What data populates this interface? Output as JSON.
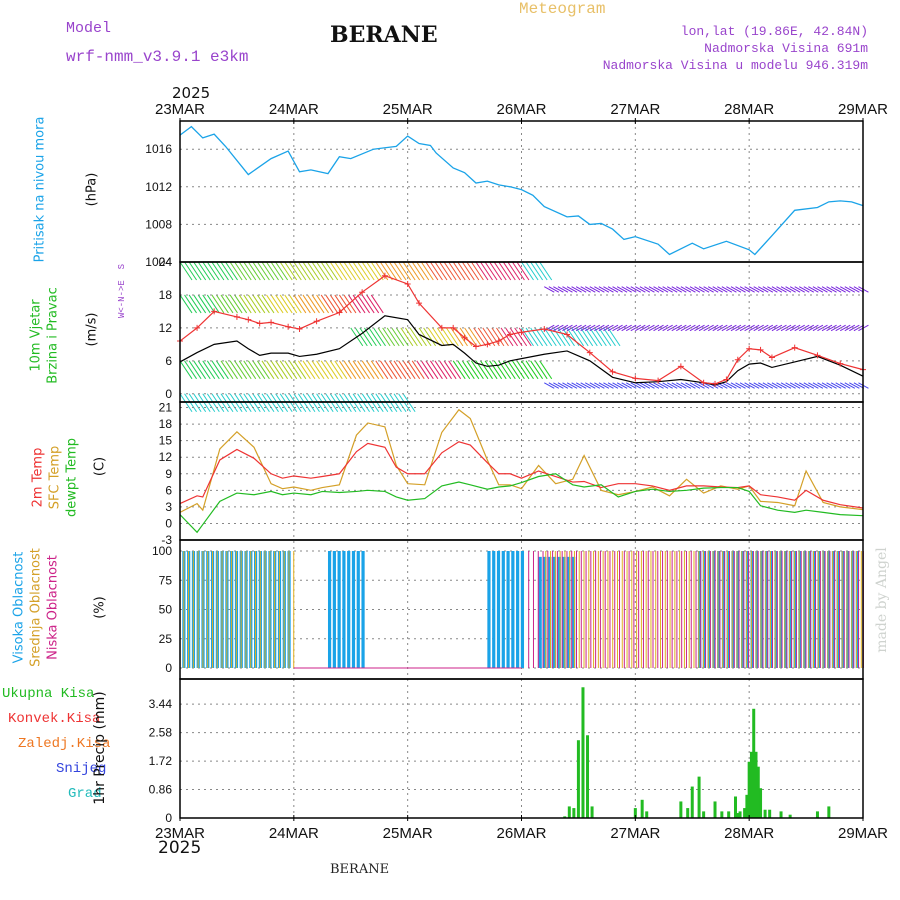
{
  "header": {
    "model_label": "Model",
    "model_name": "wrf-nmm_v3.9.1 e3km",
    "station": "BERANE",
    "subtitle": "Meteogram",
    "lonlat": "lon,lat (19.86E, 42.84N)",
    "elevation": "Nadmorska Visina 691m",
    "model_elevation": "Nadmorska Visina u modelu 946.319m",
    "year": "2025"
  },
  "footer": {
    "station": "BERANE",
    "year": "2025",
    "credit": "made by Angel"
  },
  "x_axis": {
    "labels": [
      "23MAR",
      "24MAR",
      "25MAR",
      "26MAR",
      "27MAR",
      "28MAR",
      "29MAR"
    ]
  },
  "colors": {
    "pressure": "#1aa3e8",
    "wind_speed": "#000000",
    "gust": "#ee3333",
    "temp2m": "#ee3333",
    "sfc_temp": "#d4a028",
    "dewpt": "#22bb22",
    "cloud_high": "#1aa3e8",
    "cloud_mid": "#e0b020",
    "cloud_low": "#cc2288",
    "precip_total": "#22bb22",
    "precip_conv": "#ee3333",
    "precip_frozen": "#ee7722",
    "snow": "#3344dd",
    "hail": "#22bbbb",
    "direction_legend": "#9944cc"
  },
  "chart_data": [
    {
      "type": "line",
      "title": "Pritisak na nivou mora",
      "ylabel": "(hPa)",
      "ylim": [
        1004,
        1019
      ],
      "yticks": [
        "1016",
        "1012",
        "1008",
        "1004"
      ],
      "x": [
        0,
        0.1,
        0.2,
        0.3,
        0.4,
        0.6,
        0.8,
        0.95,
        1.05,
        1.15,
        1.3,
        1.4,
        1.5,
        1.7,
        1.9,
        2.0,
        2.1,
        2.2,
        2.25,
        2.4,
        2.5,
        2.6,
        2.7,
        2.8,
        2.9,
        3.0,
        3.1,
        3.2,
        3.4,
        3.5,
        3.6,
        3.7,
        3.8,
        3.9,
        4.0,
        4.2,
        4.3,
        4.5,
        4.6,
        4.8,
        5.0,
        5.05,
        5.2,
        5.4,
        5.6,
        5.7,
        5.8,
        5.9,
        6.0
      ],
      "series": [
        {
          "name": "Pritisak",
          "values": [
            1017.5,
            1018.4,
            1017.2,
            1017.6,
            1016.3,
            1013.3,
            1015.0,
            1015.8,
            1013.6,
            1013.8,
            1013.4,
            1015.2,
            1015.0,
            1016.0,
            1016.3,
            1017.4,
            1016.6,
            1016.4,
            1015.6,
            1014.0,
            1013.5,
            1012.4,
            1012.6,
            1012.2,
            1012.0,
            1011.7,
            1011.1,
            1009.9,
            1008.8,
            1008.9,
            1008.0,
            1008.1,
            1007.5,
            1006.4,
            1006.7,
            1005.9,
            1004.8,
            1006.0,
            1005.4,
            1006.2,
            1005.3,
            1004.8,
            1006.8,
            1009.5,
            1009.8,
            1010.4,
            1010.5,
            1010.4,
            1010.0
          ]
        }
      ]
    },
    {
      "type": "line",
      "title": "10m Vjetar Brzina i Pravac",
      "ylabel": "(m/s)",
      "ylim": [
        -1.5,
        24
      ],
      "yticks": [
        "24",
        "18",
        "12",
        "6",
        "0"
      ],
      "direction_legend": [
        "N",
        "E",
        "W",
        "S"
      ],
      "x": [
        0,
        0.15,
        0.3,
        0.5,
        0.6,
        0.7,
        0.8,
        0.95,
        1.05,
        1.2,
        1.4,
        1.6,
        1.8,
        2.0,
        2.1,
        2.3,
        2.4,
        2.5,
        2.6,
        2.7,
        2.8,
        2.9,
        3.0,
        3.2,
        3.4,
        3.6,
        3.8,
        4.0,
        4.2,
        4.4,
        4.6,
        4.7,
        4.8,
        4.9,
        5.0,
        5.1,
        5.2,
        5.4,
        5.6,
        5.8,
        6.0
      ],
      "series": [
        {
          "name": "Brzina vjetra",
          "values": [
            5.8,
            7.5,
            9.0,
            9.6,
            8.2,
            7.0,
            7.4,
            7.4,
            6.8,
            7.2,
            8.2,
            11.0,
            14.2,
            13.5,
            10.8,
            8.8,
            9.0,
            7.4,
            5.6,
            5.0,
            5.2,
            6.0,
            6.4,
            7.2,
            7.8,
            6.0,
            3.0,
            2.0,
            2.2,
            2.6,
            2.0,
            1.6,
            2.2,
            4.2,
            5.4,
            5.6,
            4.8,
            5.8,
            6.8,
            5.2,
            3.2
          ]
        },
        {
          "name": "Udari vjetra",
          "values": [
            9.6,
            12.0,
            15.0,
            14.0,
            13.5,
            12.8,
            13.0,
            12.2,
            11.8,
            13.2,
            14.8,
            18.5,
            21.5,
            20.0,
            16.5,
            12.0,
            12.0,
            10.2,
            8.6,
            9.0,
            9.6,
            10.8,
            11.2,
            11.8,
            10.8,
            7.5,
            4.0,
            2.8,
            2.4,
            5.0,
            2.0,
            1.8,
            2.6,
            6.2,
            8.2,
            8.0,
            6.6,
            8.4,
            7.0,
            5.5,
            4.4
          ]
        }
      ]
    },
    {
      "type": "line",
      "ylabel": "(C)",
      "titles": [
        "2m Temp",
        "SFC Temp",
        "dewpt Temp"
      ],
      "ylim": [
        -3,
        22
      ],
      "yticks": [
        "21",
        "18",
        "15",
        "12",
        "9",
        "6",
        "3",
        "0",
        "-3"
      ],
      "x": [
        0,
        0.15,
        0.2,
        0.35,
        0.5,
        0.65,
        0.8,
        0.9,
        1.0,
        1.15,
        1.25,
        1.4,
        1.55,
        1.65,
        1.8,
        1.9,
        2.0,
        2.15,
        2.3,
        2.45,
        2.55,
        2.7,
        2.8,
        2.9,
        3.0,
        3.15,
        3.3,
        3.45,
        3.55,
        3.7,
        3.85,
        4.0,
        4.15,
        4.3,
        4.45,
        4.6,
        4.75,
        4.9,
        5.0,
        5.1,
        5.25,
        5.4,
        5.5,
        5.65,
        5.8,
        6.0
      ],
      "series": [
        {
          "name": "2m Temp",
          "values": [
            3.6,
            5.0,
            4.8,
            11.5,
            13.4,
            11.8,
            9.0,
            8.2,
            8.6,
            8.2,
            8.5,
            9.0,
            13.0,
            14.5,
            13.8,
            10.2,
            9.0,
            9.0,
            12.8,
            14.8,
            14.2,
            11.0,
            9.0,
            9.0,
            8.2,
            9.5,
            8.5,
            7.5,
            7.6,
            6.5,
            7.2,
            7.2,
            6.8,
            6.0,
            6.8,
            6.8,
            6.6,
            6.5,
            6.8,
            5.2,
            4.8,
            4.2,
            6.0,
            4.2,
            3.4,
            2.8
          ]
        },
        {
          "name": "SFC Temp",
          "values": [
            2.0,
            3.6,
            2.4,
            13.5,
            16.6,
            13.8,
            7.2,
            6.3,
            6.6,
            6.0,
            6.5,
            7.0,
            16.0,
            18.2,
            17.5,
            10.5,
            7.2,
            7.0,
            16.5,
            20.6,
            19.0,
            11.5,
            7.0,
            7.0,
            6.3,
            10.5,
            7.2,
            8.0,
            12.3,
            6.0,
            5.2,
            5.8,
            6.6,
            5.0,
            8.0,
            5.5,
            6.8,
            6.2,
            6.8,
            4.0,
            3.8,
            3.2,
            9.5,
            3.8,
            3.0,
            2.5
          ]
        },
        {
          "name": "dewpt Temp",
          "values": [
            1.6,
            -1.6,
            -0.2,
            4.0,
            5.5,
            5.2,
            5.8,
            5.2,
            5.5,
            5.2,
            5.8,
            5.6,
            5.8,
            6.0,
            5.8,
            4.8,
            4.2,
            4.5,
            6.8,
            7.5,
            7.0,
            6.2,
            6.6,
            6.8,
            7.4,
            8.5,
            9.0,
            7.0,
            6.6,
            7.0,
            4.8,
            5.8,
            6.2,
            5.8,
            6.0,
            6.4,
            6.5,
            6.5,
            5.8,
            3.2,
            2.4,
            2.0,
            2.4,
            2.0,
            1.6,
            1.4
          ]
        }
      ]
    },
    {
      "type": "bar",
      "ylabel": "(%)",
      "titles": [
        "Visoka Oblacnost",
        "Srednja Oblacnost",
        "Niska Oblacnost"
      ],
      "ylim": [
        0,
        100
      ],
      "yticks": [
        "100",
        "75",
        "50",
        "25",
        "0"
      ],
      "segments": [
        {
          "name": "Visoka Oblacnost",
          "ranges": [
            [
              0.02,
              0.98
            ],
            [
              1.3,
              1.6
            ],
            [
              2.7,
              3.02
            ],
            [
              3.15,
              3.45
            ],
            [
              4.55,
              5.95
            ]
          ],
          "values": [
            100,
            100,
            100,
            95,
            100
          ]
        },
        {
          "name": "Srednja Oblacnost",
          "ranges": [
            [
              0.02,
              1.0
            ],
            [
              3.2,
              6.0
            ]
          ],
          "values": [
            100,
            100
          ]
        },
        {
          "name": "Niska Oblacnost",
          "ranges": [
            [
              3.05,
              6.0
            ]
          ],
          "values": [
            100
          ]
        }
      ]
    },
    {
      "type": "bar",
      "ylabel": "1hr Precip (mm)",
      "titles": [
        "Ukupna Kisa",
        "Konvek.Kisa",
        "Zaledj.Kisa",
        "Snijeg",
        "Grad"
      ],
      "ylim": [
        0,
        4.2
      ],
      "yticks": [
        "3.44",
        "2.58",
        "1.72",
        "0.86",
        "0"
      ],
      "x": [
        3.38,
        3.42,
        3.46,
        3.5,
        3.54,
        3.58,
        3.62,
        4.0,
        4.06,
        4.1,
        4.4,
        4.46,
        4.5,
        4.56,
        4.6,
        4.7,
        4.76,
        4.82,
        4.88,
        4.9,
        4.92,
        4.96,
        4.98,
        5.0,
        5.02,
        5.04,
        5.06,
        5.08,
        5.1,
        5.14,
        5.18,
        5.28,
        5.36,
        5.6,
        5.7
      ],
      "series": [
        {
          "name": "Ukupna Kisa",
          "values": [
            0.05,
            0.35,
            0.3,
            2.35,
            3.95,
            2.5,
            0.35,
            0.3,
            0.55,
            0.2,
            0.5,
            0.3,
            0.95,
            1.25,
            0.2,
            0.5,
            0.2,
            0.2,
            0.65,
            0.15,
            0.2,
            0.3,
            0.7,
            1.7,
            2.0,
            3.3,
            2.0,
            1.55,
            0.9,
            0.25,
            0.25,
            0.2,
            0.1,
            0.2,
            0.35
          ]
        }
      ]
    }
  ]
}
